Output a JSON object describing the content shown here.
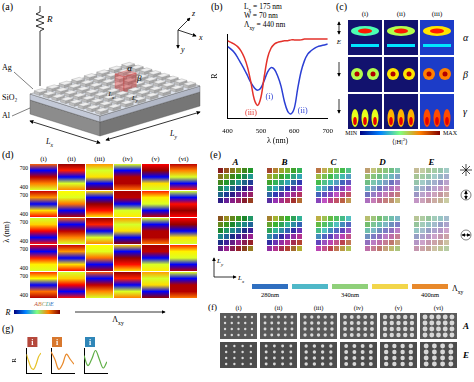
{
  "chart_data": [
    {
      "type": "line",
      "xlabel": "λ (nm)",
      "ylabel": "R",
      "subtitle": [
        [
          {
            "t": "L"
          },
          {
            "sub": "x"
          },
          {
            "t": " = 175 nm"
          }
        ],
        [
          {
            "t": "W = 70 nm"
          }
        ],
        [
          {
            "t": "Λ"
          },
          {
            "sub": "xy"
          },
          {
            "t": " = 440 nm"
          }
        ]
      ],
      "x": [
        400,
        410,
        420,
        430,
        440,
        450,
        460,
        470,
        480,
        490,
        500,
        510,
        520,
        530,
        540,
        550,
        560,
        570,
        580,
        590,
        600,
        610,
        620,
        630,
        640,
        650,
        660,
        670,
        680,
        690,
        700
      ],
      "xlim": [
        400,
        700
      ],
      "xticks": [
        400,
        500,
        600,
        700
      ],
      "ylim": [
        0,
        1
      ],
      "tick_labels": "x",
      "grid": false,
      "series": [
        {
          "color": "#e4322b",
          "values": [
            0.92,
            0.9,
            0.88,
            0.85,
            0.8,
            0.72,
            0.6,
            0.42,
            0.22,
            0.15,
            0.25,
            0.5,
            0.72,
            0.83,
            0.88,
            0.9,
            0.91,
            0.92,
            0.92,
            0.93,
            0.93,
            0.93,
            0.93,
            0.94,
            0.94,
            0.94,
            0.94,
            0.94,
            0.94,
            0.94,
            0.94
          ]
        },
        {
          "color": "#2b3fd4",
          "values": [
            0.85,
            0.82,
            0.78,
            0.72,
            0.65,
            0.58,
            0.5,
            0.42,
            0.36,
            0.33,
            0.36,
            0.45,
            0.55,
            0.6,
            0.58,
            0.5,
            0.38,
            0.2,
            0.08,
            0.05,
            0.12,
            0.35,
            0.55,
            0.68,
            0.76,
            0.8,
            0.83,
            0.85,
            0.86,
            0.87,
            0.88
          ]
        }
      ],
      "annotations": [
        {
          "text": "(i)",
          "x": 525,
          "y": 0.25,
          "color": "#2b3fd4"
        },
        {
          "text": "(ii)",
          "x": 625,
          "y": 0.08,
          "color": "#2b3fd4"
        },
        {
          "text": "(iii)",
          "x": 470,
          "y": 0.06,
          "color": "#e4322b"
        }
      ]
    },
    {
      "type": "line",
      "title": "i",
      "ylabel": "R",
      "x": [
        400,
        450,
        500,
        550,
        600,
        650,
        700
      ],
      "xlim": [
        400,
        700
      ],
      "ylim": [
        0,
        1
      ],
      "tick_labels": false,
      "grid": false,
      "series": [
        {
          "color": "#e6c229",
          "values": [
            0.75,
            0.45,
            0.2,
            0.15,
            0.35,
            0.65,
            0.8
          ]
        }
      ]
    },
    {
      "type": "line",
      "title": "i",
      "x": [
        400,
        450,
        500,
        550,
        600,
        650,
        700
      ],
      "xlim": [
        400,
        700
      ],
      "ylim": [
        0,
        1
      ],
      "tick_labels": false,
      "grid": false,
      "series": [
        {
          "color": "#e8892b",
          "values": [
            0.85,
            0.55,
            0.15,
            0.35,
            0.75,
            0.55,
            0.35
          ]
        }
      ]
    },
    {
      "type": "line",
      "title": "i",
      "x": [
        400,
        450,
        500,
        550,
        600,
        650,
        700
      ],
      "xlim": [
        400,
        700
      ],
      "ylim": [
        0,
        1
      ],
      "tick_labels": false,
      "grid": false,
      "series": [
        {
          "color": "#5fae45",
          "values": [
            0.7,
            0.3,
            0.55,
            0.9,
            0.55,
            0.2,
            0.45
          ]
        }
      ]
    }
  ],
  "figure": {
    "a": {
      "label": "(a)",
      "layers": [
        "Ag",
        "SiO₂",
        "Al"
      ],
      "resistor": "R",
      "axes": [
        "x",
        "y",
        "z"
      ],
      "modes": [
        "α",
        "β"
      ],
      "cell": [
        [
          {
            "t": "L"
          },
          {
            "sub": "x"
          }
        ],
        [
          {
            "t": "L"
          },
          {
            "sub": "y"
          }
        ]
      ],
      "sample": [
        [
          {
            "t": "L"
          },
          {
            "sub": "x"
          }
        ],
        [
          {
            "t": "L"
          },
          {
            "sub": "y"
          }
        ]
      ]
    },
    "b": {
      "label": "(b)"
    },
    "c": {
      "label": "(c)",
      "columns": [
        "(i)",
        "(ii)",
        "(iii)"
      ],
      "rows": [
        "α",
        "β",
        "γ"
      ],
      "field": "E",
      "colorbar": [
        "MIN",
        [
          {
            "t": "⟨|H|"
          },
          {
            "sup": "2"
          },
          {
            "t": "⟩"
          }
        ],
        "MAX"
      ]
    },
    "d": {
      "label": "(d)",
      "columns": [
        "(i)",
        "(ii)",
        "(iii)",
        "(iv)",
        "(v)",
        "(vi)"
      ],
      "ylabel": "λ (nm)",
      "yticks": [
        400,
        700
      ],
      "groups": [
        "A",
        "B",
        "C",
        "D",
        "E"
      ],
      "colorbar": "R",
      "xlabel": [
        {
          "t": "Λ"
        },
        {
          "sub": "xy"
        }
      ]
    },
    "e": {
      "label": "(e)",
      "groups": [
        "A",
        "B",
        "C",
        "D",
        "E"
      ],
      "axes": [
        [
          {
            "t": "L"
          },
          {
            "sub": "y"
          }
        ],
        [
          {
            "t": "L"
          },
          {
            "sub": "x"
          }
        ]
      ],
      "colorbar": [
        "280nm",
        "340nm",
        "400nm"
      ],
      "colorbar_label": [
        {
          "t": "Λ"
        },
        {
          "sub": "xy"
        }
      ]
    },
    "f": {
      "label": "(f)",
      "columns": [
        "(i)",
        "(ii)",
        "(iii)",
        "(iv)",
        "(v)",
        "(vi)"
      ],
      "rows": [
        "A",
        "E"
      ]
    },
    "g": {
      "label": "(g)"
    }
  }
}
